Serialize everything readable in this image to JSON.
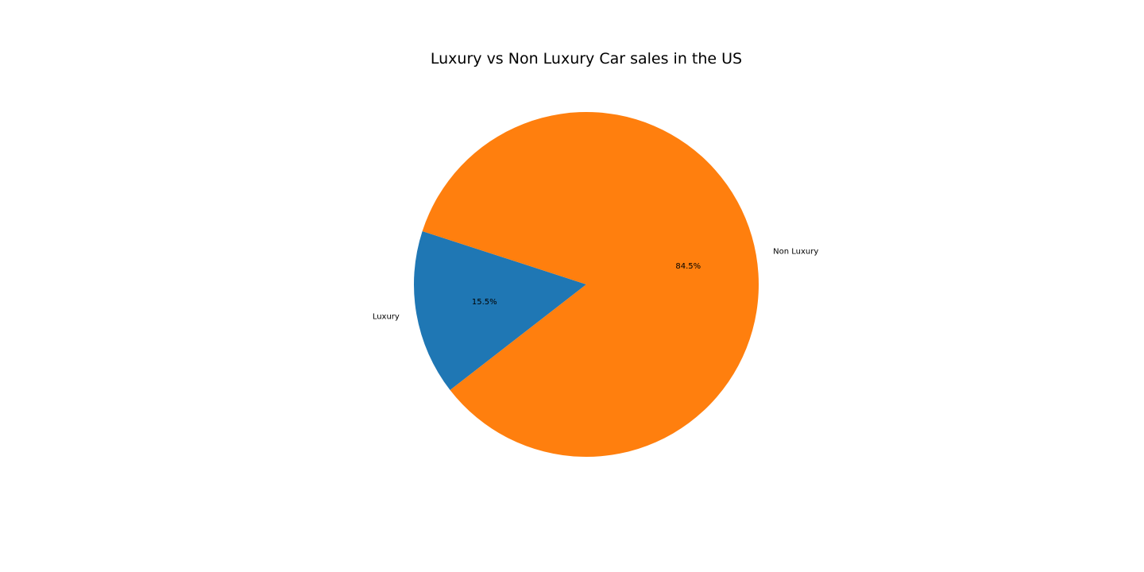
{
  "chart_data": {
    "type": "pie",
    "title": "Luxury vs Non Luxury Car sales in the US",
    "start_angle_deg": 162,
    "counterclockwise": true,
    "slices": [
      {
        "label": "Luxury",
        "value": 15.5,
        "pct_label": "15.5%",
        "color": "#1f77b4"
      },
      {
        "label": "Non Luxury",
        "value": 84.5,
        "pct_label": "84.5%",
        "color": "#ff7f0e"
      }
    ]
  }
}
